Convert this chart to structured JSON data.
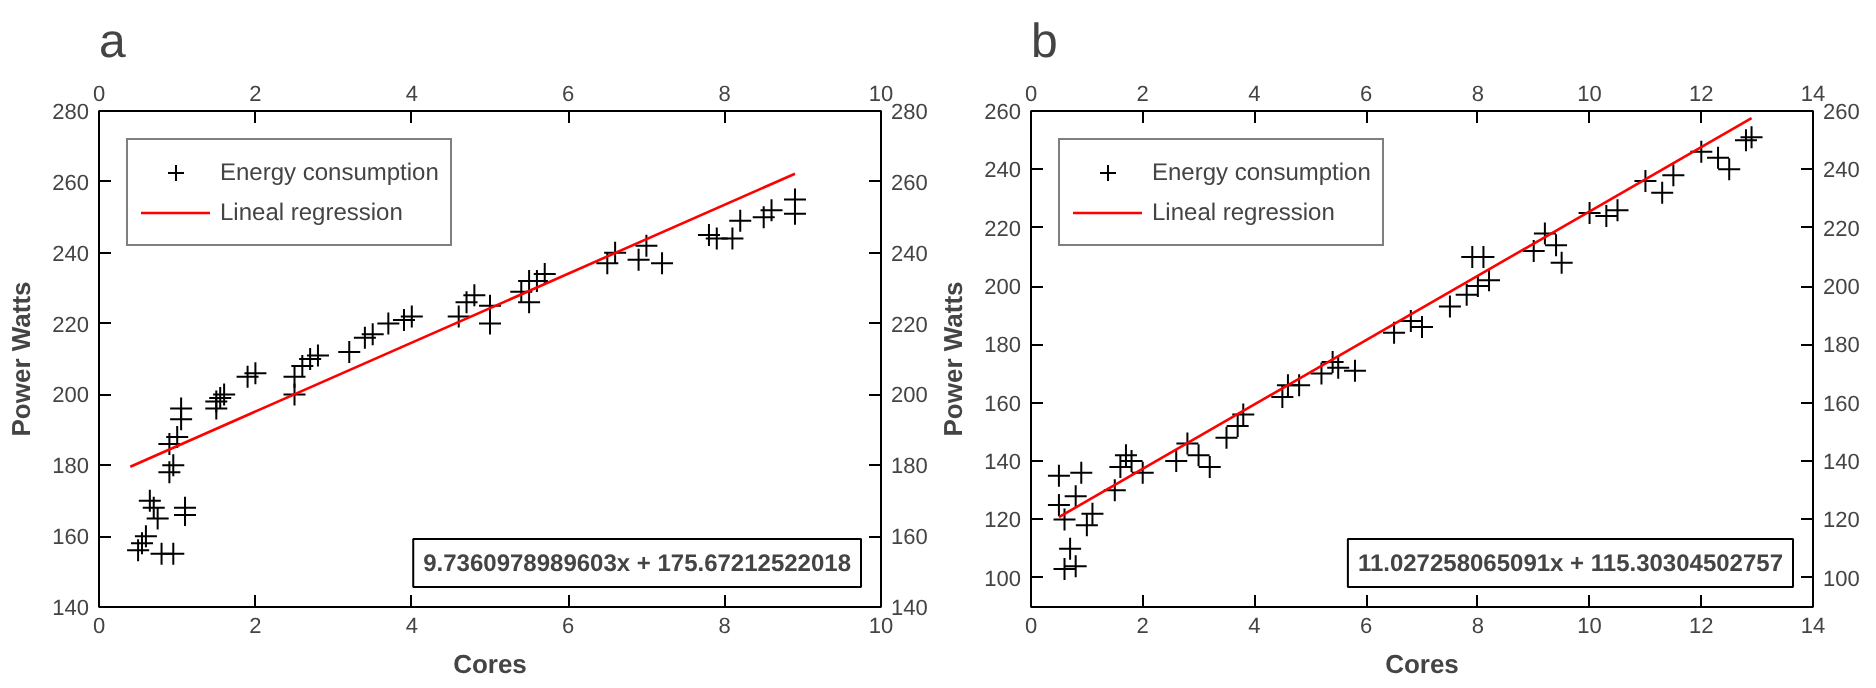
{
  "chart_data": [
    {
      "type": "scatter",
      "title": "a",
      "xlabel": "Cores",
      "ylabel": "Power Watts",
      "xlim": [
        0,
        10
      ],
      "xticks": [
        0,
        2,
        4,
        6,
        8,
        10
      ],
      "x2lim": [
        0,
        10
      ],
      "x2ticks": [
        0,
        2,
        4,
        6,
        8,
        10
      ],
      "ylim": [
        140,
        280
      ],
      "yticks": [
        140,
        160,
        180,
        200,
        220,
        240,
        260,
        280
      ],
      "y2lim": [
        140,
        280
      ],
      "y2ticks": [
        140,
        160,
        180,
        200,
        220,
        240,
        260,
        280
      ],
      "grid": false,
      "legend": "top left",
      "annotations": [
        "9.7360978989603x + 175.67212522018"
      ],
      "series": [
        {
          "name": "Energy consumption",
          "marker": "cross",
          "color": "#000000",
          "x": [
            0.5,
            0.55,
            0.6,
            0.65,
            0.7,
            0.75,
            0.8,
            0.95,
            0.9,
            0.95,
            0.9,
            1.0,
            1.05,
            1.05,
            1.1,
            1.1,
            1.5,
            1.55,
            1.6,
            1.5,
            1.9,
            2.0,
            2.5,
            2.5,
            2.6,
            2.7,
            2.8,
            3.2,
            3.4,
            3.5,
            3.7,
            3.9,
            4.0,
            4.6,
            4.7,
            4.8,
            5.0,
            5.0,
            5.4,
            5.5,
            5.6,
            5.5,
            5.7,
            6.5,
            6.6,
            6.9,
            7.0,
            7.2,
            7.8,
            7.9,
            8.1,
            8.2,
            8.5,
            8.6,
            8.9,
            8.9
          ],
          "values": [
            156,
            158,
            160,
            170,
            168,
            165,
            155,
            155,
            178,
            180,
            186,
            188,
            193,
            196,
            166,
            168,
            196,
            199,
            200,
            198,
            205,
            206,
            200,
            205,
            208,
            210,
            211,
            212,
            216,
            217,
            220,
            221,
            222,
            222,
            226,
            228,
            225,
            220,
            229,
            232,
            232,
            226,
            234,
            237,
            240,
            238,
            242,
            237,
            245,
            244,
            244,
            249,
            250,
            252,
            251,
            255
          ]
        },
        {
          "name": "Lineal regression",
          "type": "line",
          "color": "#ff0000",
          "x": [
            0.4,
            8.9
          ],
          "values": [
            179.6,
            262.3
          ]
        }
      ]
    },
    {
      "type": "scatter",
      "title": "b",
      "xlabel": "Cores",
      "ylabel": "Power Watts",
      "xlim": [
        0,
        14
      ],
      "xticks": [
        0,
        2,
        4,
        6,
        8,
        10,
        12,
        14
      ],
      "x2lim": [
        0,
        14
      ],
      "x2ticks": [
        0,
        2,
        4,
        6,
        8,
        10,
        12,
        14
      ],
      "ylim": [
        90,
        260
      ],
      "yticks": [
        100,
        120,
        140,
        160,
        180,
        200,
        220,
        240,
        260
      ],
      "y2lim": [
        90,
        260
      ],
      "y2ticks": [
        100,
        120,
        140,
        160,
        180,
        200,
        220,
        240,
        260
      ],
      "grid": false,
      "legend": "top left",
      "annotations": [
        "11.027258065091x + 115.30304502757"
      ],
      "series": [
        {
          "name": "Energy consumption",
          "marker": "cross",
          "color": "#000000",
          "x": [
            0.5,
            0.5,
            0.6,
            0.6,
            0.8,
            0.7,
            0.8,
            0.9,
            1.0,
            1.1,
            1.5,
            1.6,
            1.7,
            1.8,
            2.0,
            2.6,
            2.8,
            3.0,
            3.2,
            3.5,
            3.7,
            3.8,
            4.5,
            4.6,
            4.8,
            5.2,
            5.4,
            5.5,
            5.8,
            6.5,
            6.8,
            7.0,
            7.5,
            7.8,
            8.0,
            7.9,
            8.1,
            8.2,
            9.0,
            9.2,
            9.4,
            9.5,
            10.0,
            10.3,
            10.5,
            11.0,
            11.3,
            11.5,
            12.0,
            12.3,
            12.5,
            12.8,
            12.9
          ],
          "values": [
            125,
            135,
            120,
            103,
            104,
            110,
            128,
            136,
            118,
            122,
            130,
            138,
            142,
            140,
            136,
            140,
            146,
            142,
            138,
            148,
            152,
            156,
            162,
            166,
            166,
            170,
            174,
            172,
            171,
            184,
            188,
            186,
            193,
            197,
            200,
            210,
            210,
            202,
            212,
            218,
            214,
            208,
            225,
            224,
            226,
            236,
            232,
            238,
            246,
            244,
            240,
            250,
            251
          ]
        },
        {
          "name": "Lineal regression",
          "type": "line",
          "color": "#ff0000",
          "x": [
            0.5,
            12.9
          ],
          "values": [
            120.8,
            257.6
          ]
        }
      ]
    }
  ]
}
